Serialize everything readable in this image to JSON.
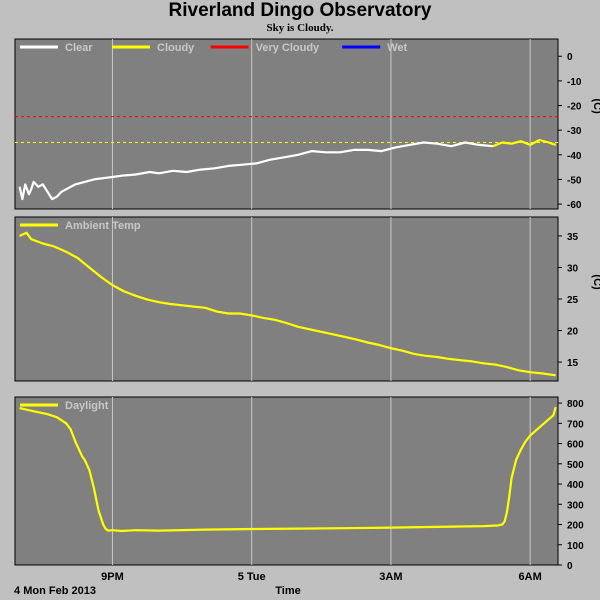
{
  "header": {
    "title": "Riverland Dingo Observatory",
    "subtitle": "Sky is Cloudy."
  },
  "colors": {
    "background": "#c0c0c0",
    "panel": "#808080",
    "grid": "#c8c8c8",
    "clear": "#ffffff",
    "cloudy": "#ffff00",
    "very_cloudy": "#ff0000",
    "wet": "#0000ff"
  },
  "chart_data": [
    {
      "type": "line",
      "name": "sky",
      "legend": [
        {
          "name": "Clear",
          "color": "#ffffff"
        },
        {
          "name": "Cloudy",
          "color": "#ffff00"
        },
        {
          "name": "Very Cloudy",
          "color": "#ff0000"
        },
        {
          "name": "Wet",
          "color": "#0000ff"
        }
      ],
      "ylabel": "(C)",
      "ylim": [
        -62,
        7
      ],
      "yticks": [
        0,
        -10,
        -20,
        -30,
        -40,
        -50,
        -60
      ],
      "thresholds": [
        {
          "value": -24.5,
          "color": "#ff0000"
        },
        {
          "value": -35,
          "color": "#ffff00"
        }
      ],
      "series": [
        {
          "name": "Clear",
          "color": "#ffffff",
          "x": [
            0,
            0.06,
            0.12,
            0.2,
            0.25,
            0.3,
            0.4,
            0.5,
            0.6,
            0.7,
            0.8,
            0.9,
            1.0,
            1.2,
            1.4,
            1.6,
            1.8,
            2.0,
            2.2,
            2.5,
            2.8,
            3.0,
            3.3,
            3.6,
            3.9,
            4.2,
            4.5,
            4.8,
            5.1,
            5.4,
            5.7,
            6.0,
            6.3,
            6.6,
            6.9,
            7.2,
            7.5,
            7.8,
            8.1,
            8.4,
            8.7,
            9.0,
            9.3,
            9.6,
            9.9,
            10.2
          ],
          "y": [
            -53,
            -58,
            -52,
            -56,
            -54,
            -51,
            -53,
            -52,
            -55,
            -58,
            -57,
            -55,
            -54,
            -52,
            -51,
            -50,
            -49.5,
            -49,
            -48.5,
            -48,
            -47,
            -47.5,
            -46.5,
            -47,
            -46,
            -45.5,
            -44.5,
            -44,
            -43.5,
            -42,
            -41,
            -40,
            -38.5,
            -39,
            -39,
            -38,
            -38,
            -38.5,
            -37,
            -36,
            -35,
            -35.5,
            -36.5,
            -35,
            -36,
            -36.5
          ]
        },
        {
          "name": "Cloudy",
          "color": "#ffff00",
          "x": [
            10.2,
            10.4,
            10.6,
            10.8,
            11.0,
            11.2,
            11.4,
            11.55
          ],
          "y": [
            -36.5,
            -35,
            -35.5,
            -34.5,
            -36,
            -34,
            -35,
            -36
          ]
        }
      ]
    },
    {
      "type": "line",
      "name": "ambient",
      "legend": [
        {
          "name": "Ambient Temp",
          "color": "#ffff00"
        }
      ],
      "ylabel": "(C)",
      "ylim": [
        12,
        38
      ],
      "yticks": [
        35,
        30,
        25,
        20,
        15
      ],
      "series": [
        {
          "name": "Ambient Temp",
          "color": "#ffff00",
          "x": [
            0,
            0.15,
            0.25,
            0.5,
            0.75,
            1.0,
            1.25,
            1.5,
            1.75,
            2.0,
            2.25,
            2.5,
            2.75,
            3.0,
            3.25,
            3.5,
            3.75,
            4.0,
            4.25,
            4.5,
            4.75,
            5.0,
            5.25,
            5.5,
            5.75,
            6.0,
            6.25,
            6.5,
            6.75,
            7.0,
            7.25,
            7.5,
            7.75,
            8.0,
            8.25,
            8.5,
            8.75,
            9.0,
            9.25,
            9.5,
            9.75,
            10.0,
            10.25,
            10.5,
            10.75,
            11.0,
            11.25,
            11.55
          ],
          "y": [
            35,
            35.5,
            34.5,
            33.8,
            33.3,
            32.5,
            31.5,
            30,
            28.5,
            27.2,
            26.2,
            25.5,
            24.9,
            24.5,
            24.2,
            24,
            23.8,
            23.6,
            23,
            22.7,
            22.7,
            22.4,
            22,
            21.7,
            21.2,
            20.6,
            20.2,
            19.8,
            19.4,
            19,
            18.6,
            18.1,
            17.7,
            17.2,
            16.8,
            16.3,
            16,
            15.8,
            15.5,
            15.3,
            15.1,
            14.8,
            14.6,
            14.2,
            13.7,
            13.4,
            13.2,
            12.9
          ]
        }
      ]
    },
    {
      "type": "line",
      "name": "daylight",
      "legend": [
        {
          "name": "Daylight",
          "color": "#ffff00"
        }
      ],
      "ylim": [
        0,
        830
      ],
      "yticks": [
        0,
        100,
        200,
        300,
        400,
        500,
        600,
        700,
        800
      ],
      "series": [
        {
          "name": "Daylight",
          "color": "#ffff00",
          "x": [
            0,
            0.2,
            0.4,
            0.6,
            0.8,
            1.0,
            1.1,
            1.2,
            1.3,
            1.35,
            1.4,
            1.5,
            1.6,
            1.7,
            1.8,
            1.85,
            1.9,
            2.0,
            2.2,
            2.5,
            3.0,
            4.0,
            5.0,
            6.0,
            7.0,
            8.0,
            9.0,
            10.0,
            10.3,
            10.4,
            10.45,
            10.5,
            10.55,
            10.6,
            10.7,
            10.8,
            10.9,
            11.0,
            11.1,
            11.2,
            11.3,
            11.4,
            11.5,
            11.55
          ],
          "y": [
            775,
            765,
            755,
            745,
            730,
            700,
            670,
            610,
            560,
            535,
            520,
            470,
            380,
            270,
            200,
            180,
            170,
            172,
            168,
            172,
            170,
            175,
            178,
            180,
            182,
            185,
            188,
            192,
            195,
            200,
            215,
            260,
            340,
            430,
            520,
            570,
            610,
            640,
            660,
            680,
            700,
            720,
            740,
            780
          ]
        }
      ]
    }
  ],
  "x_axis": {
    "label": "Time",
    "date_label": "4 Mon Feb 2013",
    "ticks": [
      {
        "label": "9PM",
        "x": 2
      },
      {
        "label": "5 Tue",
        "x": 5
      },
      {
        "label": "3AM",
        "x": 8
      },
      {
        "label": "6AM",
        "x": 11
      }
    ],
    "xlim": [
      -0.1,
      11.6
    ]
  }
}
